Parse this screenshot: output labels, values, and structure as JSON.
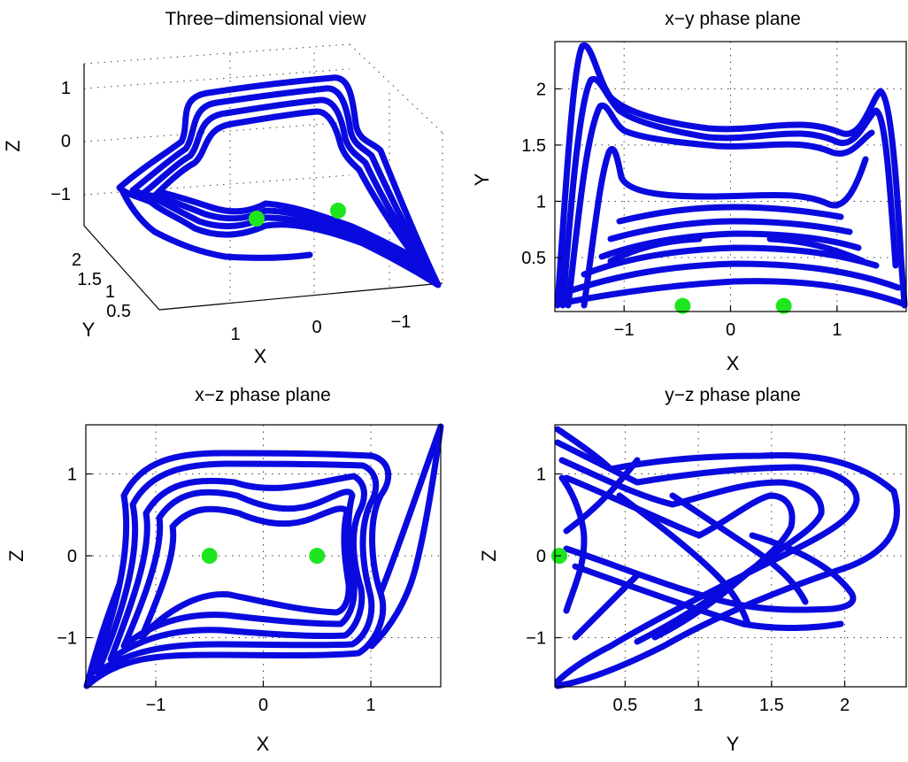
{
  "colors": {
    "trajectory": "#0a0adf",
    "equilibrium": "#1ee61e",
    "axes": "#000000"
  },
  "chart_data": [
    {
      "id": "three_d",
      "type": "line",
      "title": "Three−dimensional view",
      "xlabel": "X",
      "ylabel": "Y",
      "zlabel": "Z",
      "xticks": [
        "1",
        "0",
        "−1"
      ],
      "yticks": [
        "2",
        "1.5",
        "1",
        "0.5"
      ],
      "zticks": [
        "1",
        "0",
        "−1"
      ],
      "grid": true
    },
    {
      "id": "xy",
      "type": "line",
      "title": "x−y phase plane",
      "xlabel": "X",
      "ylabel": "Y",
      "xlim": [
        -1.65,
        1.65
      ],
      "ylim": [
        0.02,
        2.42
      ],
      "xticks": [
        {
          "v": -1,
          "l": "−1"
        },
        {
          "v": 0,
          "l": "0"
        },
        {
          "v": 1,
          "l": "1"
        }
      ],
      "yticks": [
        {
          "v": 0.5,
          "l": "0.5"
        },
        {
          "v": 1,
          "l": "1"
        },
        {
          "v": 1.5,
          "l": "1.5"
        },
        {
          "v": 2,
          "l": "2"
        }
      ],
      "grid": true,
      "equilibria": [
        [
          -0.45,
          0.07
        ],
        [
          0.5,
          0.07
        ]
      ]
    },
    {
      "id": "xz",
      "type": "line",
      "title": "x−z phase plane",
      "xlabel": "X",
      "ylabel": "Z",
      "xlim": [
        -1.65,
        1.65
      ],
      "ylim": [
        -1.6,
        1.6
      ],
      "xticks": [
        {
          "v": -1,
          "l": "−1"
        },
        {
          "v": 0,
          "l": "0"
        },
        {
          "v": 1,
          "l": "1"
        }
      ],
      "yticks": [
        {
          "v": -1,
          "l": "−1"
        },
        {
          "v": 0,
          "l": "0"
        },
        {
          "v": 1,
          "l": "1"
        }
      ],
      "grid": true,
      "equilibria": [
        [
          -0.5,
          0
        ],
        [
          0.5,
          0
        ]
      ]
    },
    {
      "id": "yz",
      "type": "line",
      "title": "y−z phase plane",
      "xlabel": "Y",
      "ylabel": "Z",
      "xlim": [
        0.02,
        2.42
      ],
      "ylim": [
        -1.6,
        1.6
      ],
      "xticks": [
        {
          "v": 0.5,
          "l": "0.5"
        },
        {
          "v": 1,
          "l": "1"
        },
        {
          "v": 1.5,
          "l": "1.5"
        },
        {
          "v": 2,
          "l": "2"
        }
      ],
      "yticks": [
        {
          "v": -1,
          "l": "−1"
        },
        {
          "v": 0,
          "l": "0"
        },
        {
          "v": 1,
          "l": "1"
        }
      ],
      "grid": true,
      "equilibria": [
        [
          0.05,
          0
        ]
      ]
    }
  ]
}
